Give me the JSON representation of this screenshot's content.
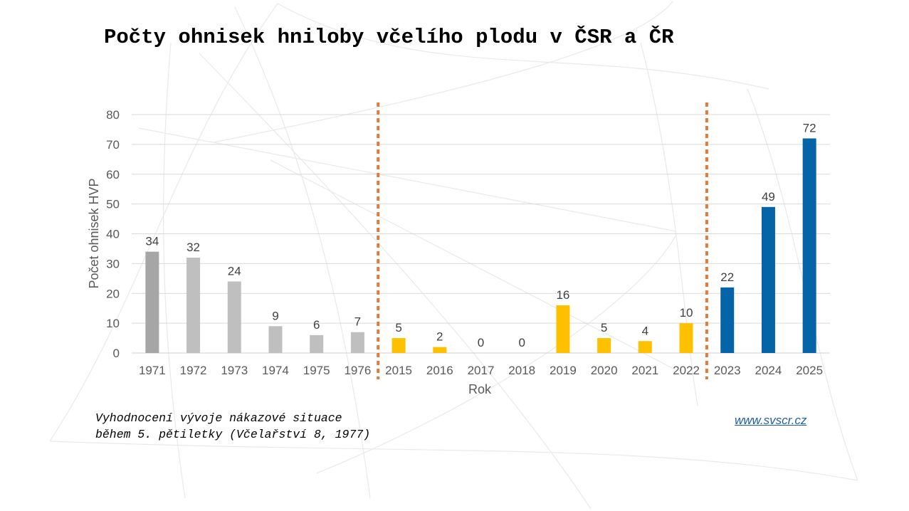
{
  "title": "Počty ohnisek hniloby včelího plodu v ČSR a ČR",
  "note": {
    "line1": "Vyhodnocení vývoje nákazové situace",
    "line2": "během 5. pětiletky (Včelařství 8, 1977)"
  },
  "link": "www.svscr.cz",
  "colors": {
    "grey_dark": "#a6a6a6",
    "grey": "#bfbfbf",
    "yellow": "#ffc000",
    "blue": "#0563a8",
    "divider": "#e07b39"
  },
  "chart_data": {
    "type": "bar",
    "xlabel": "Rok",
    "ylabel": "Počet ohnisek HVP",
    "ylim": [
      0,
      80
    ],
    "yticks": [
      0,
      10,
      20,
      30,
      40,
      50,
      60,
      70,
      80
    ],
    "grid": true,
    "categories": [
      "1971",
      "1972",
      "1973",
      "1974",
      "1975",
      "1976",
      "2015",
      "2016",
      "2017",
      "2018",
      "2019",
      "2020",
      "2021",
      "2022",
      "2023",
      "2024",
      "2025"
    ],
    "values": [
      34,
      32,
      24,
      9,
      6,
      7,
      5,
      2,
      0,
      0,
      16,
      5,
      4,
      10,
      22,
      49,
      72
    ],
    "bar_colors": [
      "#a6a6a6",
      "#bfbfbf",
      "#bfbfbf",
      "#bfbfbf",
      "#bfbfbf",
      "#bfbfbf",
      "#ffc000",
      "#ffc000",
      "#ffc000",
      "#ffc000",
      "#ffc000",
      "#ffc000",
      "#ffc000",
      "#ffc000",
      "#0563a8",
      "#0563a8",
      "#0563a8"
    ],
    "dividers_after_categories": [
      "1976",
      "2022"
    ],
    "data_labels": true
  }
}
